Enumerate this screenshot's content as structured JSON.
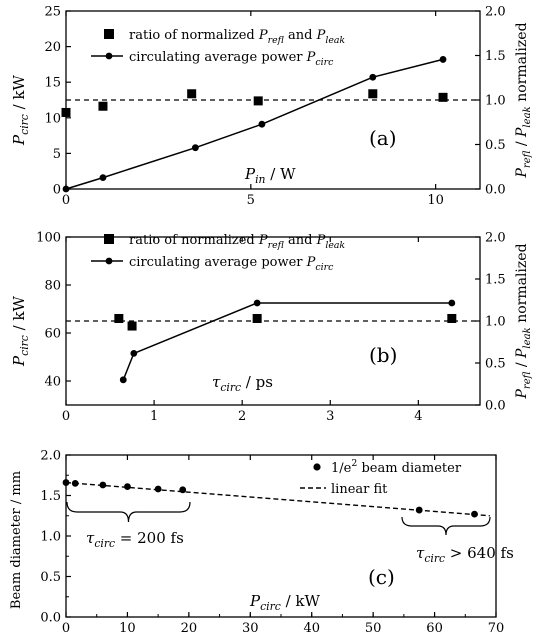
{
  "chart_data": [
    {
      "panel": "(a)",
      "type": "line",
      "xlabel": {
        "var": "P",
        "sub": "in",
        "unit": " / W"
      },
      "ylabel": {
        "var": "P",
        "sub": "circ",
        "unit": " / kW"
      },
      "y2label": {
        "p1": "P",
        "s1": "refl",
        "mid": " / ",
        "p2": "P",
        "s2": "leak",
        "tail": " normalized"
      },
      "xlim": [
        0,
        11.2
      ],
      "ylim": [
        0,
        25
      ],
      "y2lim": [
        0,
        2.0
      ],
      "xticks": [
        "0",
        "5",
        "10"
      ],
      "xtick_values": [
        0,
        5,
        10
      ],
      "yticks": [
        "0",
        "5",
        "10",
        "15",
        "20",
        "25"
      ],
      "ytick_values": [
        0,
        5,
        10,
        15,
        20,
        25
      ],
      "y2ticks": [
        "0.0",
        "0.5",
        "1.0",
        "1.5",
        "2.0"
      ],
      "y2tick_values": [
        0,
        0.5,
        1.0,
        1.5,
        2.0
      ],
      "legend": {
        "squares": {
          "text": "ratio of normalized ",
          "v1": "P",
          "s1": "refl",
          "and": " and ",
          "v2": "P",
          "s2": "leak"
        },
        "line": {
          "text": "circulating average power ",
          "v": "P",
          "s": "circ"
        }
      },
      "series": [
        {
          "kind": "line-circles",
          "axis": "left",
          "x": [
            0,
            1.0,
            3.5,
            5.3,
            8.3,
            10.2
          ],
          "y": [
            0,
            1.6,
            5.8,
            9.1,
            15.7,
            18.2
          ]
        },
        {
          "kind": "squares",
          "axis": "right",
          "x": [
            0,
            1.0,
            3.4,
            5.2,
            8.3,
            10.2
          ],
          "y": [
            0.86,
            0.93,
            1.07,
            0.99,
            1.07,
            1.03
          ]
        }
      ],
      "ref_line": {
        "axis": "right",
        "y": 1.0
      }
    },
    {
      "panel": "(b)",
      "type": "line",
      "xlabel": {
        "var": "τ",
        "sub": "circ",
        "unit": " / ps"
      },
      "ylabel": {
        "var": "P",
        "sub": "circ",
        "unit": " / kW"
      },
      "y2label": {
        "p1": "P",
        "s1": "refl",
        "mid": " / ",
        "p2": "P",
        "s2": "leak",
        "tail": " normalized"
      },
      "xlim": [
        0,
        4.7
      ],
      "ylim": [
        30,
        100
      ],
      "y2lim": [
        0,
        2.0
      ],
      "xticks": [
        "0",
        "1",
        "2",
        "3",
        "4"
      ],
      "xtick_values": [
        0,
        1,
        2,
        3,
        4
      ],
      "yticks": [
        "40",
        "60",
        "80",
        "100"
      ],
      "ytick_values": [
        40,
        60,
        80,
        100
      ],
      "y2ticks": [
        "0.0",
        "0.5",
        "1.0",
        "1.5",
        "2.0"
      ],
      "y2tick_values": [
        0,
        0.5,
        1.0,
        1.5,
        2.0
      ],
      "legend": {
        "squares": {
          "text": "ratio of normalized ",
          "v1": "P",
          "s1": "refl",
          "and": " and ",
          "v2": "P",
          "s2": "leak"
        },
        "line": {
          "text": "circulating average power ",
          "v": "P",
          "s": "circ"
        }
      },
      "series": [
        {
          "kind": "line-circles",
          "axis": "left",
          "x": [
            0.65,
            0.77,
            2.17,
            4.38
          ],
          "y": [
            40.5,
            51.5,
            72.5,
            72.5
          ]
        },
        {
          "kind": "squares",
          "axis": "right",
          "x": [
            0.6,
            0.75,
            2.17,
            4.38
          ],
          "y": [
            1.03,
            0.94,
            1.03,
            1.03
          ]
        }
      ],
      "ref_line": {
        "axis": "right",
        "y": 1.0
      }
    },
    {
      "panel": "(c)",
      "type": "scatter",
      "xlabel": {
        "var": "P",
        "sub": "circ",
        "unit": " / kW"
      },
      "ylabel_text": "Beam diameter / mm",
      "xlim": [
        0,
        70
      ],
      "ylim": [
        0,
        2.0
      ],
      "xticks": [
        "0",
        "10",
        "20",
        "30",
        "40",
        "50",
        "60",
        "70"
      ],
      "xtick_values": [
        0,
        10,
        20,
        30,
        40,
        50,
        60,
        70
      ],
      "yticks": [
        "0.0",
        "0.5",
        "1.0",
        "1.5",
        "2.0"
      ],
      "ytick_values": [
        0,
        0.5,
        1.0,
        1.5,
        2.0
      ],
      "legend": {
        "points": "1/e",
        "points_sup": "2",
        "points_tail": " beam diameter",
        "fit": "linear fit"
      },
      "series": [
        {
          "name": "1/e² beam diameter",
          "kind": "circles",
          "x": [
            0,
            1.5,
            6,
            10,
            15,
            19,
            57.5,
            66.5
          ],
          "y": [
            1.66,
            1.65,
            1.63,
            1.61,
            1.58,
            1.57,
            1.32,
            1.27
          ]
        },
        {
          "name": "linear fit",
          "kind": "dashed",
          "x": [
            0,
            69
          ],
          "y": [
            1.66,
            1.25
          ]
        }
      ],
      "annotations": [
        {
          "var": "τ",
          "sub": "circ",
          "text": " = 200 fs"
        },
        {
          "var": "τ",
          "sub": "circ",
          "text": " > 640 fs"
        }
      ]
    }
  ]
}
